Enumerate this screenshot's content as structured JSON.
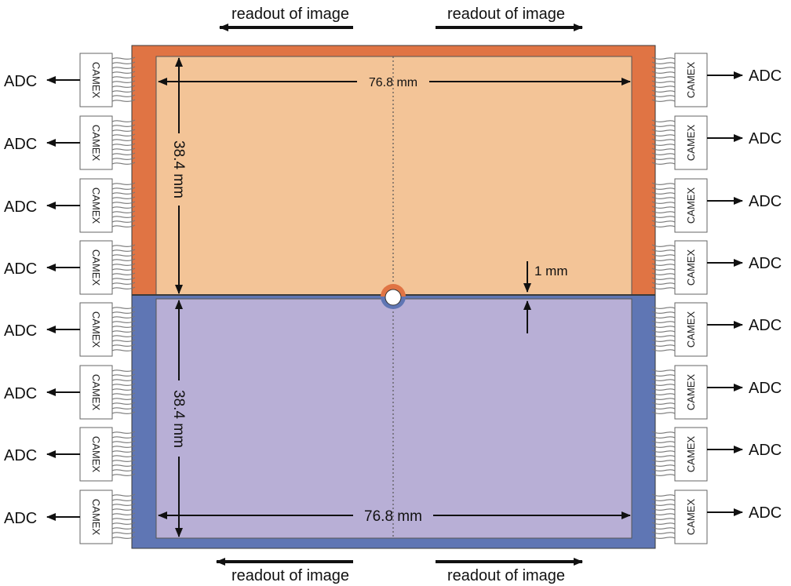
{
  "readout_labels": {
    "top_left": "readout of image",
    "top_right": "readout of image",
    "bottom_left": "readout of image",
    "bottom_right": "readout of image"
  },
  "dimensions": {
    "width_top": "76.8 mm",
    "width_bottom": "76.8 mm",
    "height_top": "38.4 mm",
    "height_bottom": "38.4 mm",
    "gap": "1 mm"
  },
  "left_channels": [
    {
      "chip": "CAMEX",
      "adc": "ADC"
    },
    {
      "chip": "CAMEX",
      "adc": "ADC"
    },
    {
      "chip": "CAMEX",
      "adc": "ADC"
    },
    {
      "chip": "CAMEX",
      "adc": "ADC"
    },
    {
      "chip": "CAMEX",
      "adc": "ADC"
    },
    {
      "chip": "CAMEX",
      "adc": "ADC"
    },
    {
      "chip": "CAMEX",
      "adc": "ADC"
    },
    {
      "chip": "CAMEX",
      "adc": "ADC"
    }
  ],
  "right_channels": [
    {
      "chip": "CAMEX",
      "adc": "ADC"
    },
    {
      "chip": "CAMEX",
      "adc": "ADC"
    },
    {
      "chip": "CAMEX",
      "adc": "ADC"
    },
    {
      "chip": "CAMEX",
      "adc": "ADC"
    },
    {
      "chip": "CAMEX",
      "adc": "ADC"
    },
    {
      "chip": "CAMEX",
      "adc": "ADC"
    },
    {
      "chip": "CAMEX",
      "adc": "ADC"
    },
    {
      "chip": "CAMEX",
      "adc": "ADC"
    }
  ],
  "colors": {
    "top_frame": "#E07444",
    "top_fill": "#F3C497",
    "bottom_frame": "#5F76B4",
    "bottom_fill": "#B8AFD6",
    "chip_box": "#FFFFFF"
  }
}
